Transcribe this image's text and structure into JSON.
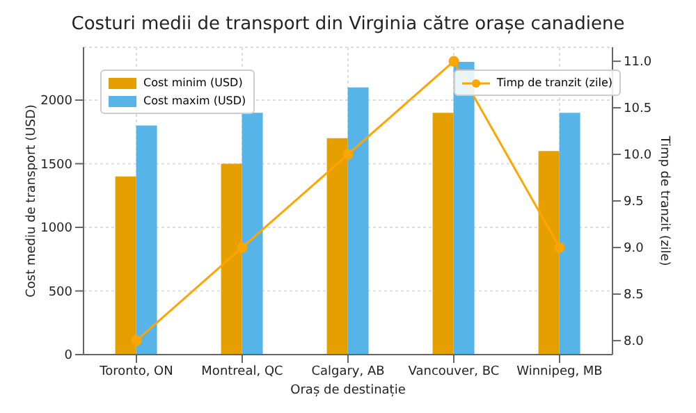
{
  "chart_data": {
    "type": "bar",
    "title": "Costuri medii de transport din Virginia către orașe canadiene",
    "xlabel": "Oraș de destinație",
    "ylabel": "Cost mediu de transport (USD)",
    "y2label": "Timp de tranzit (zile)",
    "categories": [
      "Toronto, ON",
      "Montreal, QC",
      "Calgary, AB",
      "Vancouver, BC",
      "Winnipeg, MB"
    ],
    "series": [
      {
        "name": "Cost minim (USD)",
        "color": "#e69f00",
        "values": [
          1400,
          1500,
          1700,
          1900,
          1600
        ]
      },
      {
        "name": "Cost maxim (USD)",
        "color": "#56b4e9",
        "values": [
          1800,
          1900,
          2100,
          2300,
          1900
        ]
      },
      {
        "name": "Timp de tranzit (zile)",
        "type": "line",
        "axis": "y2",
        "color": "#ffa500",
        "marker": "circle",
        "values": [
          8.0,
          9.0,
          10.0,
          11.0,
          9.0
        ]
      }
    ],
    "ylim": [
      0,
      2415
    ],
    "yticks": [
      0,
      500,
      1000,
      1500,
      2000
    ],
    "y2lim": [
      7.85,
      11.15
    ],
    "y2ticks": [
      {
        "value": 8.0,
        "label": "8.0"
      },
      {
        "value": 8.5,
        "label": "8.5"
      },
      {
        "value": 9.0,
        "label": "9.0"
      },
      {
        "value": 9.5,
        "label": "9.5"
      },
      {
        "value": 10.0,
        "label": "10.0"
      },
      {
        "value": 10.5,
        "label": "10.5"
      },
      {
        "value": 11.0,
        "label": "11.0"
      }
    ],
    "grid": true,
    "legend": "top left"
  }
}
